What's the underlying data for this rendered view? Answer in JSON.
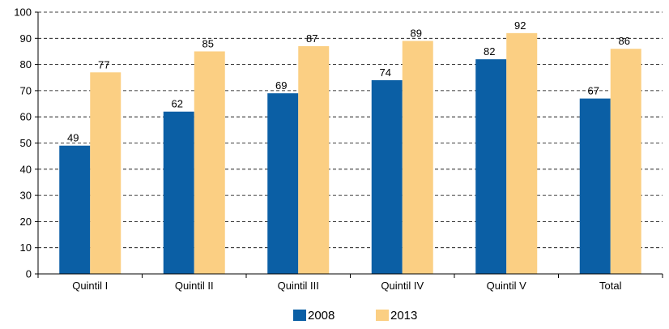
{
  "chart_data": {
    "type": "bar",
    "categories": [
      "Quintil I",
      "Quintil II",
      "Quintil III",
      "Quintil IV",
      "Quintil V",
      "Total"
    ],
    "series": [
      {
        "name": "2008",
        "values": [
          49,
          62,
          69,
          74,
          82,
          67
        ],
        "color": "#0b5fa5"
      },
      {
        "name": "2013",
        "values": [
          77,
          85,
          87,
          89,
          92,
          86
        ],
        "color": "#fbcf83"
      }
    ],
    "title": "",
    "xlabel": "",
    "ylabel": "",
    "ylim": [
      0,
      100
    ],
    "yticks": [
      0,
      10,
      20,
      30,
      40,
      50,
      60,
      70,
      80,
      90,
      100
    ],
    "grid": "horizontal dashed",
    "legend_position": "bottom-center",
    "data_labels": true
  }
}
